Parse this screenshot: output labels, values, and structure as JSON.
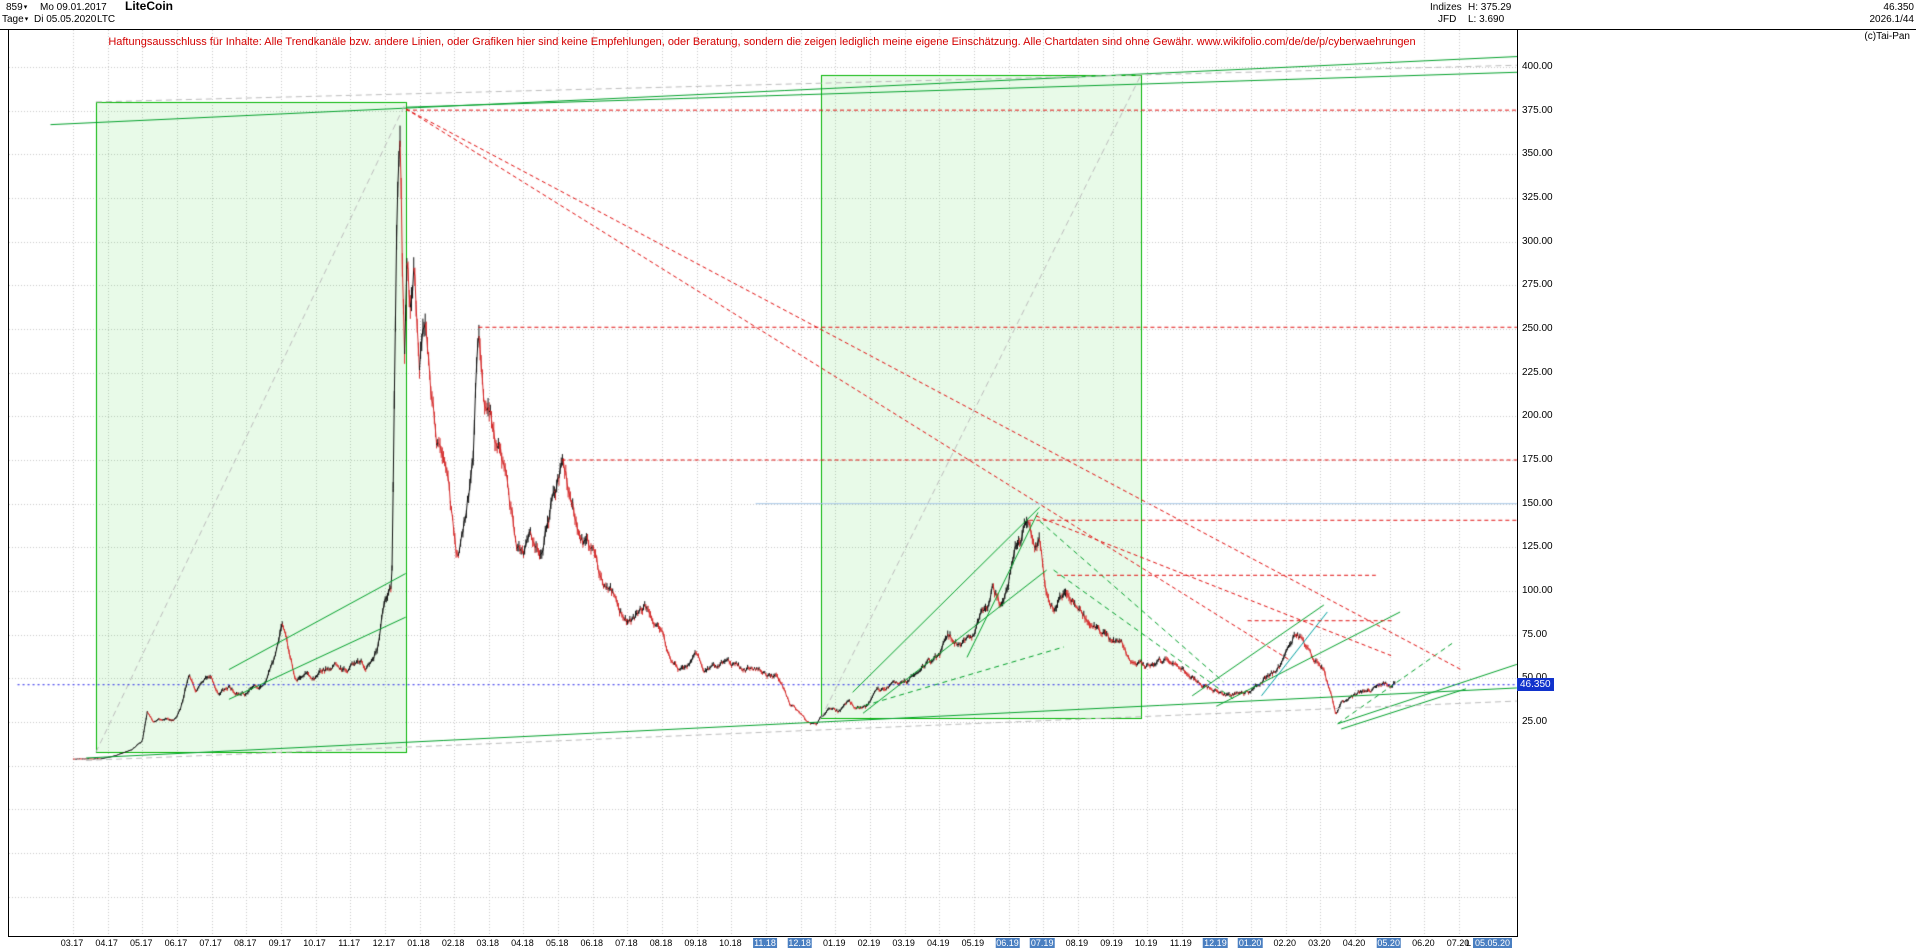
{
  "header": {
    "bars_count": "859",
    "date_from": "Mo 09.01.2017",
    "timeframe": "Tage",
    "date_to": "Di 05.05.2020",
    "symbol": "LTC",
    "title": "LiteCoin",
    "indices_label": "Indizes",
    "high_label": "H: 375.29",
    "broker": "JFD",
    "low_label": "L: 3.690",
    "last_price": "46.350",
    "ratio": "2026.1/44",
    "copyright": "(c)Tai-Pan"
  },
  "disclaimer": "Haftungsausschluss für Inhalte: Alle Trendkanäle bzw. andere Linien, oder Grafiken hier sind keine Empfehlungen, oder Beratung, sondern die zeigen lediglich meine eigene Einschätzung. Alle Chartdaten sind ohne Gewähr.  www.wikifolio.com/de/de/p/cyberwaehrungen",
  "axis": {
    "price_tag": "46.350",
    "last_prefix": "L",
    "last_date": "05.05.20"
  },
  "colors": {
    "black_candle": "#111111",
    "red_candle": "#d42a2a",
    "green": "#00a02a",
    "green_box_stroke": "#00b400",
    "green_box_fill": "rgba(0,200,0,0.09)",
    "red": "#e01010",
    "gray": "#bcbcbc",
    "blue": "#2222e8",
    "teal": "#00a0a0",
    "light_blue": "#a6c6e6",
    "grid": "#c8c8c8",
    "highlight_blue": "#4a7fc1",
    "price_tag_bg": "#1133cc"
  },
  "chart_data": {
    "type": "candlestick",
    "title": "LiteCoin",
    "symbol": "LTC",
    "period_high": 375.29,
    "period_low": 3.69,
    "last_price": 46.35,
    "scale": "linear",
    "y_ticks": [
      "400.00",
      "375.00",
      "350.00",
      "325.00",
      "300.00",
      "275.00",
      "250.00",
      "225.00",
      "200.00",
      "175.00",
      "150.00",
      "125.00",
      "100.00",
      "75.00",
      "50.00",
      "25.00"
    ],
    "extra_grid_prices": [
      0,
      -25,
      -50,
      -75
    ],
    "x_labels": [
      "03.17",
      "04.17",
      "05.17",
      "06.17",
      "07.17",
      "08.17",
      "09.17",
      "10.17",
      "11.17",
      "12.17",
      "01.18",
      "02.18",
      "03.18",
      "04.18",
      "05.18",
      "06.18",
      "07.18",
      "08.18",
      "09.18",
      "10.18",
      "11.18",
      "12.18",
      "01.19",
      "02.19",
      "03.19",
      "04.19",
      "05.19",
      "06.19",
      "07.19",
      "08.19",
      "09.19",
      "10.19",
      "11.19",
      "12.19",
      "01.20",
      "02.20",
      "03.20",
      "04.20",
      "05.20",
      "06.20",
      "07.20"
    ],
    "x_highlighted": [
      "11.18",
      "12.18",
      "06.19",
      "07.19",
      "12.19",
      "01.20",
      "05.20"
    ],
    "anchors": [
      [
        0.0,
        3.8
      ],
      [
        0.8,
        4.0
      ],
      [
        1.2,
        5.5
      ],
      [
        1.7,
        9.0
      ],
      [
        2.0,
        14
      ],
      [
        2.15,
        30
      ],
      [
        2.3,
        25
      ],
      [
        2.6,
        27
      ],
      [
        2.9,
        26
      ],
      [
        3.1,
        32
      ],
      [
        3.35,
        52
      ],
      [
        3.55,
        41
      ],
      [
        3.8,
        48
      ],
      [
        4.0,
        51
      ],
      [
        4.2,
        42
      ],
      [
        4.5,
        45
      ],
      [
        4.8,
        41
      ],
      [
        5.1,
        43
      ],
      [
        5.5,
        46
      ],
      [
        5.85,
        62
      ],
      [
        6.05,
        79
      ],
      [
        6.25,
        63
      ],
      [
        6.45,
        48
      ],
      [
        6.7,
        56
      ],
      [
        7.0,
        51
      ],
      [
        7.3,
        55
      ],
      [
        7.6,
        58
      ],
      [
        7.9,
        54
      ],
      [
        8.2,
        60
      ],
      [
        8.5,
        57
      ],
      [
        8.8,
        70
      ],
      [
        9.0,
        98
      ],
      [
        9.2,
        103
      ],
      [
        9.35,
        320
      ],
      [
        9.45,
        375
      ],
      [
        9.5,
        300
      ],
      [
        9.57,
        235
      ],
      [
        9.65,
        290
      ],
      [
        9.75,
        255
      ],
      [
        9.85,
        285
      ],
      [
        10.0,
        232
      ],
      [
        10.15,
        255
      ],
      [
        10.3,
        215
      ],
      [
        10.5,
        185
      ],
      [
        10.7,
        177
      ],
      [
        10.9,
        145
      ],
      [
        11.1,
        118
      ],
      [
        11.3,
        140
      ],
      [
        11.55,
        175
      ],
      [
        11.7,
        250
      ],
      [
        11.85,
        215
      ],
      [
        12.0,
        205
      ],
      [
        12.2,
        185
      ],
      [
        12.5,
        160
      ],
      [
        12.8,
        125
      ],
      [
        13.0,
        118
      ],
      [
        13.2,
        132
      ],
      [
        13.5,
        122
      ],
      [
        13.8,
        148
      ],
      [
        14.1,
        172
      ],
      [
        14.4,
        150
      ],
      [
        14.7,
        132
      ],
      [
        15.0,
        121
      ],
      [
        15.3,
        99
      ],
      [
        15.6,
        96
      ],
      [
        15.9,
        81
      ],
      [
        16.2,
        84
      ],
      [
        16.5,
        89
      ],
      [
        16.8,
        80
      ],
      [
        17.0,
        74
      ],
      [
        17.2,
        62
      ],
      [
        17.5,
        54
      ],
      [
        17.8,
        58
      ],
      [
        18.0,
        64
      ],
      [
        18.2,
        55
      ],
      [
        18.5,
        57
      ],
      [
        18.8,
        61
      ],
      [
        19.1,
        58
      ],
      [
        19.4,
        54
      ],
      [
        19.7,
        56
      ],
      [
        20.0,
        53
      ],
      [
        20.3,
        51
      ],
      [
        20.5,
        44
      ],
      [
        20.7,
        35
      ],
      [
        21.0,
        31
      ],
      [
        21.2,
        25
      ],
      [
        21.45,
        23.5
      ],
      [
        21.7,
        30
      ],
      [
        21.9,
        33
      ],
      [
        22.1,
        31
      ],
      [
        22.4,
        38
      ],
      [
        22.6,
        33
      ],
      [
        22.9,
        34
      ],
      [
        23.2,
        42
      ],
      [
        23.5,
        45
      ],
      [
        23.8,
        47
      ],
      [
        24.1,
        48
      ],
      [
        24.4,
        56
      ],
      [
        24.7,
        60
      ],
      [
        25.0,
        62
      ],
      [
        25.25,
        75
      ],
      [
        25.5,
        70
      ],
      [
        25.75,
        73
      ],
      [
        26.0,
        76
      ],
      [
        26.3,
        89
      ],
      [
        26.55,
        102
      ],
      [
        26.75,
        92
      ],
      [
        27.0,
        107
      ],
      [
        27.2,
        125
      ],
      [
        27.45,
        136
      ],
      [
        27.6,
        141
      ],
      [
        27.75,
        122
      ],
      [
        27.9,
        128
      ],
      [
        28.1,
        99
      ],
      [
        28.3,
        91
      ],
      [
        28.5,
        95
      ],
      [
        28.7,
        101
      ],
      [
        28.9,
        94
      ],
      [
        29.1,
        88
      ],
      [
        29.4,
        80
      ],
      [
        29.7,
        74
      ],
      [
        30.0,
        70
      ],
      [
        30.3,
        68
      ],
      [
        30.55,
        56
      ],
      [
        30.8,
        58
      ],
      [
        31.0,
        57
      ],
      [
        31.3,
        59
      ],
      [
        31.6,
        61
      ],
      [
        31.9,
        58
      ],
      [
        32.2,
        50
      ],
      [
        32.5,
        47
      ],
      [
        32.8,
        44
      ],
      [
        33.1,
        42
      ],
      [
        33.4,
        40
      ],
      [
        33.7,
        43
      ],
      [
        34.0,
        42
      ],
      [
        34.3,
        48
      ],
      [
        34.6,
        53
      ],
      [
        34.9,
        59
      ],
      [
        35.1,
        68
      ],
      [
        35.3,
        77
      ],
      [
        35.5,
        72
      ],
      [
        35.7,
        63
      ],
      [
        35.9,
        59
      ],
      [
        36.1,
        54
      ],
      [
        36.3,
        40
      ],
      [
        36.45,
        29
      ],
      [
        36.6,
        35
      ],
      [
        36.8,
        39
      ],
      [
        37.0,
        40
      ],
      [
        37.3,
        43
      ],
      [
        37.6,
        45
      ],
      [
        37.9,
        47
      ],
      [
        38.05,
        44
      ],
      [
        38.15,
        46.35
      ]
    ],
    "boxes": [
      {
        "t1": 0.66,
        "p1": 379.8,
        "t2": 9.61,
        "p2": 7.6
      },
      {
        "t1": 21.59,
        "p1": 395.4,
        "t2": 30.82,
        "p2": 27.3
      }
    ],
    "lines": [
      {
        "c": "green",
        "d": "solid",
        "pts": [
          [
            -0.65,
            367
          ],
          [
            41.7,
            406
          ]
        ]
      },
      {
        "c": "green",
        "d": "solid",
        "pts": [
          [
            9.61,
            377
          ],
          [
            41.7,
            397
          ]
        ]
      },
      {
        "c": "green",
        "d": "solid",
        "pts": [
          [
            0.38,
            4.4
          ],
          [
            41.67,
            44.5
          ]
        ]
      },
      {
        "c": "green",
        "d": "solid",
        "pts": [
          [
            4.5,
            55
          ],
          [
            9.6,
            110
          ]
        ]
      },
      {
        "c": "green",
        "d": "solid",
        "pts": [
          [
            4.5,
            38
          ],
          [
            9.6,
            85
          ]
        ]
      },
      {
        "c": "green",
        "d": "solid",
        "pts": [
          [
            22.5,
            42
          ],
          [
            27.9,
            148
          ]
        ]
      },
      {
        "c": "green",
        "d": "solid",
        "pts": [
          [
            22.8,
            30
          ],
          [
            28.1,
            112
          ]
        ]
      },
      {
        "c": "green",
        "d": "solid",
        "pts": [
          [
            25.8,
            62
          ],
          [
            27.85,
            145
          ]
        ]
      },
      {
        "c": "green",
        "d": "solid",
        "pts": [
          [
            32.3,
            40
          ],
          [
            36.1,
            92
          ]
        ]
      },
      {
        "c": "green",
        "d": "solid",
        "pts": [
          [
            33.0,
            34
          ],
          [
            38.3,
            88
          ]
        ]
      },
      {
        "c": "green",
        "d": "solid",
        "pts": [
          [
            36.5,
            24
          ],
          [
            41.67,
            58
          ]
        ]
      },
      {
        "c": "green",
        "d": "solid",
        "pts": [
          [
            36.6,
            21
          ],
          [
            40.2,
            44
          ]
        ]
      },
      {
        "c": "green",
        "d": "gdash",
        "pts": [
          [
            27.9,
            140
          ],
          [
            33.2,
            48
          ]
        ]
      },
      {
        "c": "green",
        "d": "gdash",
        "pts": [
          [
            28.3,
            112
          ],
          [
            33.5,
            38
          ]
        ]
      },
      {
        "c": "green",
        "d": "gdash",
        "pts": [
          [
            22.6,
            33
          ],
          [
            28.6,
            68
          ]
        ]
      },
      {
        "c": "green",
        "d": "gdash",
        "pts": [
          [
            36.5,
            24
          ],
          [
            39.8,
            70
          ]
        ]
      },
      {
        "c": "teal",
        "d": "solid",
        "pts": [
          [
            34.3,
            40
          ],
          [
            36.2,
            88
          ]
        ]
      },
      {
        "c": "red",
        "d": "rdash",
        "pts": [
          [
            9.61,
            375.3
          ],
          [
            41.67,
            375.3
          ]
        ]
      },
      {
        "c": "red",
        "d": "rdash",
        "pts": [
          [
            11.7,
            251
          ],
          [
            41.67,
            251
          ]
        ]
      },
      {
        "c": "red",
        "d": "rdash",
        "pts": [
          [
            14.1,
            175
          ],
          [
            41.67,
            175
          ]
        ]
      },
      {
        "c": "red",
        "d": "rdash",
        "pts": [
          [
            27.6,
            140.5
          ],
          [
            41.67,
            140.5
          ]
        ]
      },
      {
        "c": "red",
        "d": "rdash",
        "pts": [
          [
            28.4,
            109
          ],
          [
            37.6,
            109
          ]
        ]
      },
      {
        "c": "red",
        "d": "rdash",
        "pts": [
          [
            33.9,
            83
          ],
          [
            38.1,
            83
          ]
        ]
      },
      {
        "c": "red",
        "d": "rdash",
        "pts": [
          [
            9.61,
            376
          ],
          [
            35.15,
            60
          ]
        ]
      },
      {
        "c": "red",
        "d": "rdash",
        "pts": [
          [
            9.61,
            376
          ],
          [
            40.06,
            55
          ]
        ]
      },
      {
        "c": "red",
        "d": "rdash",
        "pts": [
          [
            27.79,
            143
          ],
          [
            38.04,
            63
          ]
        ]
      },
      {
        "c": "gray",
        "d": "dash",
        "pts": [
          [
            0.66,
            7.6
          ],
          [
            9.61,
            379.8
          ]
        ]
      },
      {
        "c": "gray",
        "d": "dash",
        "pts": [
          [
            21.59,
            27.3
          ],
          [
            30.82,
            395.4
          ]
        ]
      },
      {
        "c": "gray",
        "d": "dash",
        "pts": [
          [
            0.66,
            380
          ],
          [
            41.67,
            401
          ]
        ]
      },
      {
        "c": "gray",
        "d": "dash",
        "pts": [
          [
            0.38,
            3
          ],
          [
            41.67,
            37
          ]
        ]
      },
      {
        "c": "light_blue",
        "d": "solid",
        "pts": [
          [
            19.7,
            150
          ],
          [
            41.67,
            150
          ]
        ]
      },
      {
        "c": "blue",
        "d": "dot",
        "pts": [
          [
            -1.6,
            46.35
          ],
          [
            41.67,
            46.35
          ]
        ]
      }
    ]
  }
}
